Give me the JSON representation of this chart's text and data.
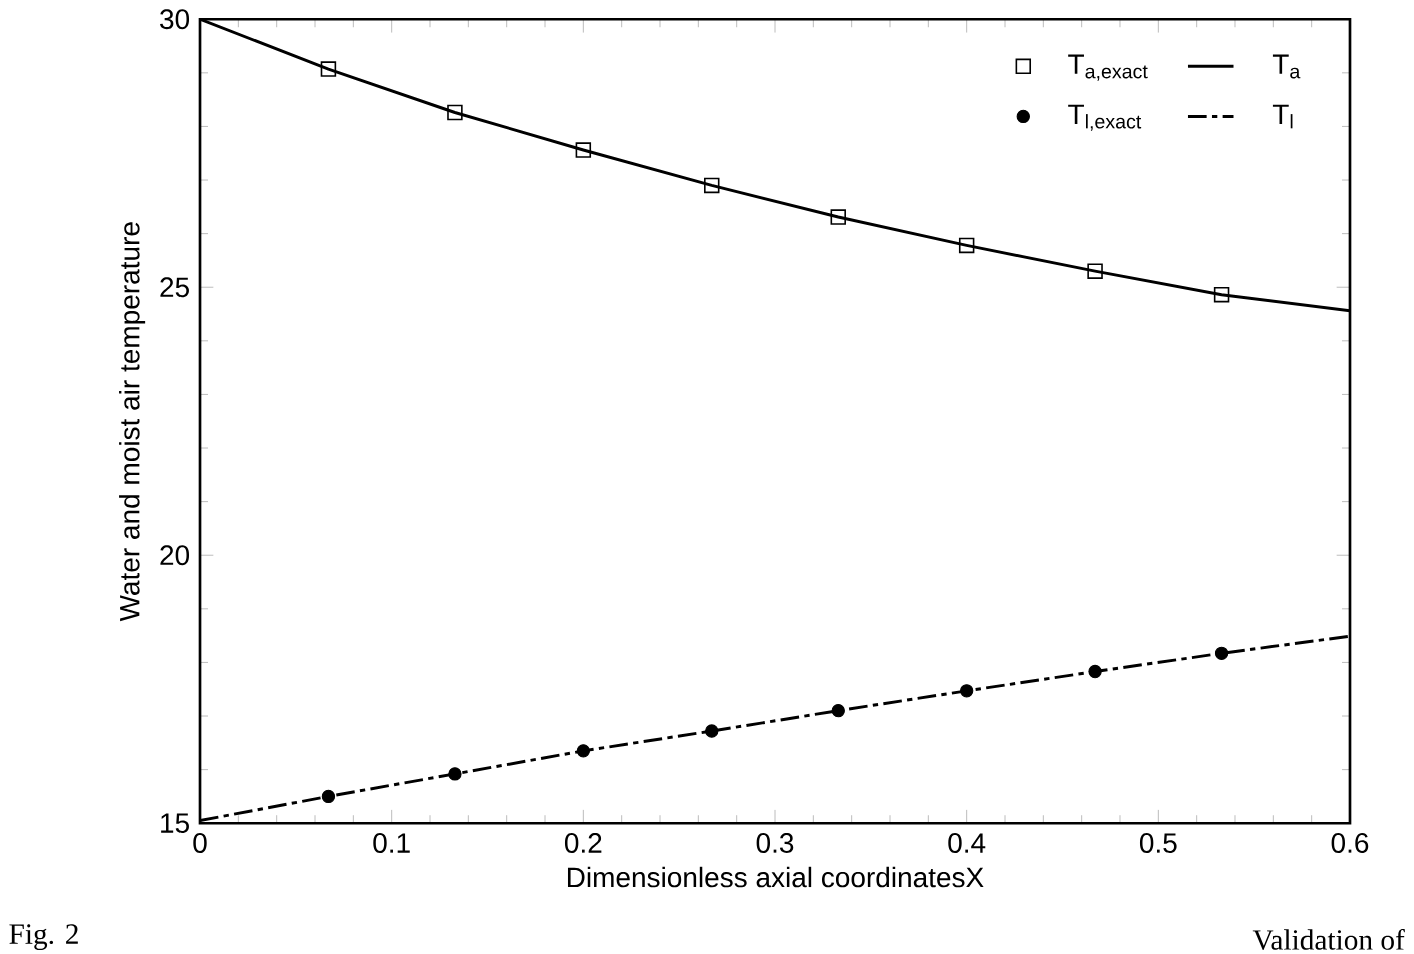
{
  "chart_data": {
    "type": "line",
    "xlabel": "Dimensionless axial coordinatesX",
    "ylabel": "Water and moist air temperature",
    "xlim": [
      0,
      0.6
    ],
    "ylim": [
      15,
      30
    ],
    "xticks": [
      0,
      0.1,
      0.2,
      0.3,
      0.4,
      0.5,
      0.6
    ],
    "yticks": [
      15,
      20,
      25,
      30
    ],
    "grid": false,
    "legend": "top right",
    "annotations": [
      "Fig. 2",
      "Validation of"
    ],
    "series": [
      {
        "name": "T$_{a,exact}$",
        "type": "scatter",
        "marker": "square",
        "color": "#000000",
        "x": [
          0.067,
          0.133,
          0.2,
          0.267,
          0.333,
          0.4,
          0.467,
          0.533
        ],
        "values": [
          29.07,
          28.26,
          27.56,
          26.9,
          26.31,
          25.78,
          25.3,
          24.86
        ]
      },
      {
        "name": "T$_{a}$",
        "type": "line",
        "line_style": "solid",
        "color": "#000000",
        "x": [
          0,
          0.067,
          0.133,
          0.2,
          0.267,
          0.333,
          0.4,
          0.467,
          0.533,
          0.6
        ],
        "values": [
          30,
          29.07,
          28.26,
          27.56,
          26.9,
          26.31,
          25.78,
          25.3,
          24.86,
          24.56
        ]
      },
      {
        "name": "T$_{l,exact}$",
        "type": "scatter",
        "marker": "circle",
        "color": "#000000",
        "x": [
          0.067,
          0.133,
          0.2,
          0.267,
          0.333,
          0.4,
          0.467,
          0.533
        ],
        "values": [
          15.5,
          15.92,
          16.35,
          16.72,
          17.1,
          17.47,
          17.83,
          18.17
        ]
      },
      {
        "name": "T$_{l}$",
        "type": "line",
        "line_style": "dashdot",
        "color": "#000000",
        "x": [
          0,
          0.067,
          0.133,
          0.2,
          0.267,
          0.333,
          0.4,
          0.467,
          0.533,
          0.6
        ],
        "values": [
          15.05,
          15.5,
          15.92,
          16.35,
          16.72,
          17.1,
          17.47,
          17.83,
          18.17,
          18.49
        ]
      }
    ]
  }
}
